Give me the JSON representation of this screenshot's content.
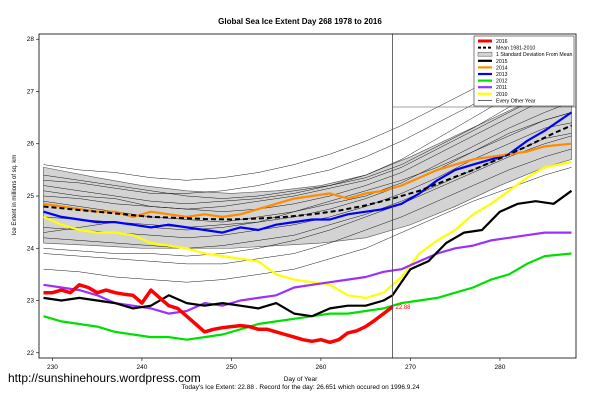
{
  "chart_data": {
    "type": "line",
    "title": "Global Sea Ice Extent Day 268 1978 to 2016",
    "xlabel": "Day of Year",
    "ylabel": "Ice Extent in millions of sq. km",
    "xlim": [
      228.5,
      288.5
    ],
    "ylim": [
      21.9,
      28.1
    ],
    "x_ticks": [
      230,
      240,
      250,
      260,
      270,
      280
    ],
    "y_ticks": [
      22,
      23,
      24,
      25,
      26,
      27,
      28
    ],
    "grid": false,
    "legend_position": "top-right",
    "current_day_marker": 268,
    "current_value_label": "22.88",
    "footer": "Today's Ice Extent: 22.88 .  Record for the day: 26.651 which occured on 1996.9.24",
    "band": {
      "name": "1 Standard Deviation From Mean",
      "x": [
        229,
        235,
        240,
        245,
        250,
        255,
        260,
        265,
        270,
        275,
        280,
        285,
        288
      ],
      "upper": [
        25.55,
        25.35,
        25.2,
        25.1,
        25.05,
        25.1,
        25.2,
        25.4,
        25.75,
        26.15,
        26.55,
        26.95,
        27.15
      ],
      "lower": [
        24.1,
        24.05,
        24.0,
        24.0,
        24.0,
        24.05,
        24.1,
        24.2,
        24.45,
        24.8,
        25.2,
        25.55,
        25.7
      ]
    },
    "series": [
      {
        "name": "2016",
        "color": "#ff0000",
        "width": 3.5,
        "x": [
          229,
          230,
          231,
          232,
          233,
          234,
          235,
          236,
          237,
          238,
          239,
          240,
          241,
          242,
          243,
          244,
          245,
          246,
          247,
          248,
          249,
          250,
          251,
          252,
          253,
          254,
          255,
          256,
          257,
          258,
          259,
          260,
          261,
          262,
          263,
          264,
          265,
          266,
          267,
          268
        ],
        "values": [
          23.15,
          23.15,
          23.2,
          23.15,
          23.3,
          23.25,
          23.15,
          23.2,
          23.15,
          23.12,
          23.1,
          22.95,
          23.2,
          23.05,
          22.9,
          22.85,
          22.7,
          22.55,
          22.4,
          22.45,
          22.48,
          22.5,
          22.52,
          22.5,
          22.45,
          22.45,
          22.4,
          22.35,
          22.3,
          22.25,
          22.22,
          22.25,
          22.2,
          22.25,
          22.38,
          22.42,
          22.5,
          22.62,
          22.75,
          22.88
        ]
      },
      {
        "name": "Mean 1981-2010",
        "color": "#000000",
        "width": 2,
        "dash": "5,3",
        "x": [
          229,
          232,
          235,
          238,
          241,
          244,
          247,
          250,
          253,
          256,
          259,
          262,
          265,
          268,
          271,
          274,
          277,
          280,
          283,
          286,
          288
        ],
        "values": [
          24.8,
          24.75,
          24.7,
          24.65,
          24.6,
          24.58,
          24.56,
          24.55,
          24.57,
          24.6,
          24.65,
          24.72,
          24.82,
          24.95,
          25.1,
          25.3,
          25.5,
          25.72,
          25.95,
          26.2,
          26.35
        ]
      },
      {
        "name": "2015",
        "color": "#000000",
        "width": 2.2,
        "x": [
          229,
          231,
          233,
          235,
          237,
          239,
          241,
          243,
          245,
          247,
          249,
          251,
          253,
          255,
          257,
          259,
          261,
          263,
          265,
          267,
          268,
          270,
          272,
          274,
          276,
          278,
          280,
          282,
          284,
          286,
          288
        ],
        "values": [
          23.05,
          23.0,
          23.05,
          23.0,
          22.95,
          22.85,
          22.9,
          23.1,
          22.95,
          22.9,
          22.95,
          22.9,
          22.85,
          22.95,
          22.75,
          22.7,
          22.85,
          22.9,
          22.9,
          23.0,
          23.1,
          23.6,
          23.75,
          24.1,
          24.3,
          24.35,
          24.7,
          24.85,
          24.9,
          24.85,
          25.1
        ]
      },
      {
        "name": "2014",
        "color": "#ff8c00",
        "width": 2.2,
        "x": [
          229,
          231,
          233,
          235,
          237,
          239,
          241,
          243,
          245,
          247,
          249,
          251,
          253,
          255,
          257,
          259,
          261,
          263,
          265,
          267,
          269,
          271,
          273,
          275,
          277,
          279,
          281,
          283,
          285,
          288
        ],
        "values": [
          24.85,
          24.8,
          24.75,
          24.7,
          24.7,
          24.6,
          24.7,
          24.65,
          24.6,
          24.65,
          24.6,
          24.65,
          24.75,
          24.85,
          24.95,
          25.0,
          25.05,
          24.95,
          25.05,
          25.1,
          25.2,
          25.35,
          25.5,
          25.6,
          25.7,
          25.75,
          25.8,
          25.85,
          25.95,
          26.0
        ]
      },
      {
        "name": "2013",
        "color": "#0000ff",
        "width": 2.2,
        "x": [
          229,
          231,
          233,
          235,
          237,
          239,
          241,
          243,
          245,
          247,
          249,
          251,
          253,
          255,
          257,
          259,
          261,
          263,
          265,
          267,
          269,
          271,
          273,
          275,
          277,
          279,
          281,
          283,
          285,
          288
        ],
        "values": [
          24.7,
          24.6,
          24.55,
          24.5,
          24.5,
          24.45,
          24.4,
          24.45,
          24.4,
          24.35,
          24.3,
          24.4,
          24.35,
          24.45,
          24.5,
          24.55,
          24.55,
          24.65,
          24.7,
          24.75,
          24.85,
          25.05,
          25.3,
          25.5,
          25.6,
          25.7,
          25.8,
          26.05,
          26.25,
          26.6
        ]
      },
      {
        "name": "2012",
        "color": "#00e000",
        "width": 2.2,
        "x": [
          229,
          231,
          233,
          235,
          237,
          239,
          241,
          243,
          245,
          247,
          249,
          251,
          253,
          255,
          257,
          259,
          261,
          263,
          265,
          267,
          269,
          271,
          273,
          275,
          277,
          279,
          281,
          283,
          285,
          288
        ],
        "values": [
          22.7,
          22.6,
          22.55,
          22.5,
          22.4,
          22.35,
          22.3,
          22.3,
          22.25,
          22.3,
          22.35,
          22.45,
          22.55,
          22.6,
          22.65,
          22.7,
          22.75,
          22.75,
          22.8,
          22.85,
          22.95,
          23.0,
          23.05,
          23.15,
          23.25,
          23.4,
          23.5,
          23.7,
          23.85,
          23.9
        ]
      },
      {
        "name": "2011",
        "color": "#9b30ff",
        "width": 2.2,
        "x": [
          229,
          231,
          233,
          235,
          237,
          239,
          241,
          243,
          245,
          247,
          249,
          251,
          253,
          255,
          257,
          259,
          261,
          263,
          265,
          267,
          269,
          271,
          273,
          275,
          277,
          279,
          281,
          283,
          285,
          288
        ],
        "values": [
          23.3,
          23.25,
          23.2,
          23.1,
          22.95,
          22.9,
          22.85,
          22.75,
          22.8,
          22.95,
          22.9,
          23.0,
          23.05,
          23.1,
          23.25,
          23.3,
          23.35,
          23.4,
          23.45,
          23.55,
          23.6,
          23.75,
          23.9,
          24.0,
          24.05,
          24.15,
          24.2,
          24.25,
          24.3,
          24.3
        ]
      },
      {
        "name": "2010",
        "color": "#ffff00",
        "width": 2.2,
        "x": [
          229,
          231,
          233,
          235,
          237,
          239,
          241,
          243,
          245,
          247,
          249,
          251,
          253,
          255,
          257,
          259,
          261,
          263,
          265,
          267,
          269,
          271,
          273,
          275,
          277,
          279,
          281,
          283,
          285,
          288
        ],
        "values": [
          24.6,
          24.45,
          24.35,
          24.3,
          24.3,
          24.25,
          24.1,
          24.05,
          24.0,
          23.9,
          23.85,
          23.8,
          23.75,
          23.5,
          23.4,
          23.35,
          23.3,
          23.1,
          23.05,
          23.15,
          23.45,
          23.9,
          24.15,
          24.35,
          24.65,
          24.85,
          25.1,
          25.35,
          25.55,
          25.65
        ]
      }
    ],
    "other_years": {
      "name": "Every Other Year",
      "color": "#000000",
      "x": [
        229,
        233,
        237,
        241,
        245,
        249,
        253,
        257,
        261,
        265,
        269,
        273,
        277,
        281,
        285,
        288
      ],
      "lines": [
        [
          25.4,
          25.3,
          25.2,
          25.1,
          25.0,
          24.95,
          25.0,
          25.1,
          25.2,
          25.4,
          25.7,
          26.1,
          26.5,
          26.9,
          27.3,
          27.5
        ],
        [
          25.2,
          25.1,
          25.0,
          24.9,
          24.85,
          24.9,
          24.95,
          25.05,
          25.2,
          25.35,
          25.6,
          25.95,
          26.3,
          26.7,
          27.05,
          27.3
        ],
        [
          25.0,
          24.95,
          24.85,
          24.8,
          24.75,
          24.7,
          24.75,
          24.85,
          25.0,
          25.2,
          25.45,
          25.8,
          26.15,
          26.5,
          26.85,
          27.05
        ],
        [
          24.9,
          24.8,
          24.7,
          24.6,
          24.55,
          24.5,
          24.6,
          24.7,
          24.85,
          25.0,
          25.25,
          25.6,
          25.95,
          26.3,
          26.6,
          26.8
        ],
        [
          24.6,
          24.55,
          24.5,
          24.45,
          24.4,
          24.45,
          24.5,
          24.6,
          24.75,
          24.95,
          25.2,
          25.5,
          25.85,
          26.2,
          26.45,
          26.6
        ],
        [
          24.4,
          24.35,
          24.3,
          24.25,
          24.2,
          24.25,
          24.35,
          24.45,
          24.6,
          24.8,
          25.05,
          25.35,
          25.7,
          26.0,
          26.3,
          26.4
        ],
        [
          24.2,
          24.15,
          24.1,
          24.05,
          24.0,
          24.05,
          24.15,
          24.25,
          24.45,
          24.65,
          24.9,
          25.2,
          25.5,
          25.8,
          26.1,
          26.2
        ],
        [
          23.9,
          23.85,
          23.8,
          23.75,
          23.7,
          23.7,
          23.8,
          23.9,
          24.1,
          24.35,
          24.6,
          24.9,
          25.2,
          25.5,
          25.75,
          25.9
        ],
        [
          23.6,
          23.55,
          23.45,
          23.4,
          23.35,
          23.4,
          23.5,
          23.6,
          23.8,
          24.0,
          24.3,
          24.6,
          24.9,
          25.15,
          25.4,
          25.55
        ],
        [
          25.6,
          25.5,
          25.45,
          25.35,
          25.3,
          25.35,
          25.45,
          25.6,
          25.8,
          26.05,
          26.35,
          26.7,
          27.05,
          27.4,
          27.7,
          27.85
        ],
        [
          25.3,
          25.25,
          25.15,
          25.05,
          25.05,
          25.1,
          25.2,
          25.35,
          25.5,
          25.75,
          26.05,
          26.4,
          26.75,
          27.1,
          27.4,
          27.6
        ],
        [
          24.3,
          24.4,
          24.5,
          24.4,
          24.35,
          24.4,
          24.5,
          24.7,
          24.9,
          25.1,
          25.3,
          25.55,
          25.85,
          26.15,
          26.45,
          26.6
        ],
        [
          24.0,
          23.95,
          23.9,
          23.9,
          23.85,
          23.9,
          24.0,
          24.15,
          24.35,
          24.6,
          24.85,
          25.15,
          25.45,
          25.75,
          26.0,
          26.15
        ],
        [
          25.1,
          25.0,
          24.95,
          24.8,
          24.75,
          24.8,
          24.9,
          25.0,
          25.15,
          25.3,
          25.55,
          25.9,
          26.25,
          26.6,
          26.95,
          27.15
        ]
      ]
    },
    "legend": [
      "2016",
      "Mean 1981-2010",
      "1 Standard Deviation From Mean",
      "2015",
      "2014",
      "2013",
      "2012",
      "2011",
      "2010",
      "Every Other Year"
    ]
  },
  "watermark": "http://sunshinehours.wordpress.com",
  "colors": {
    "band": "#d3d3d3",
    "band_edge": "#555555",
    "marker_line": "#444444"
  }
}
